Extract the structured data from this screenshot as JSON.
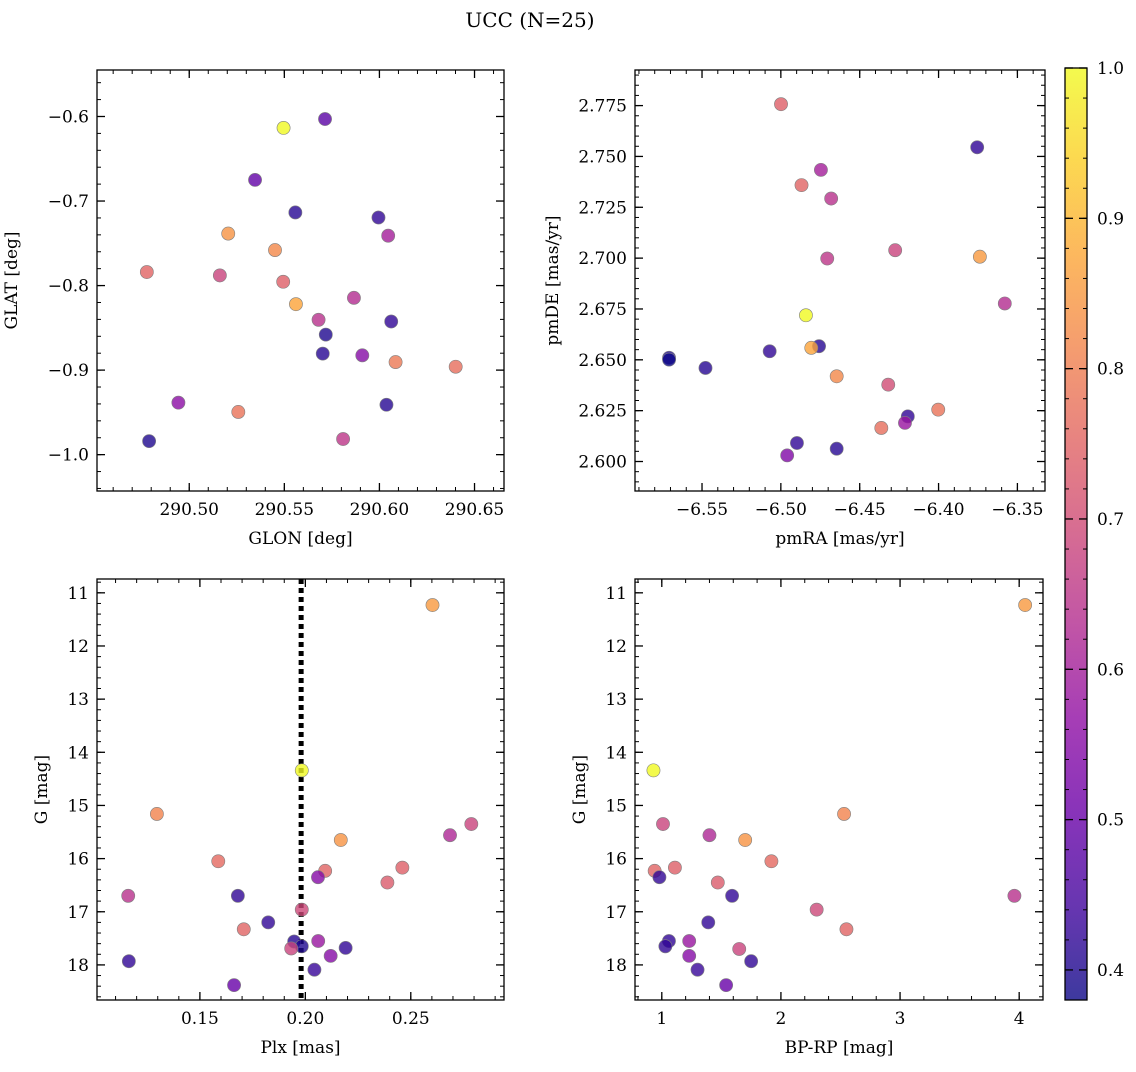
{
  "figure": {
    "title": "UCC (N=25)"
  },
  "colorbar": {
    "min": 0.38,
    "max": 1.0,
    "ticks": [
      0.4,
      0.5,
      0.6,
      0.7,
      0.8,
      0.9,
      1.0
    ],
    "tick_labels": [
      "0.4",
      "0.5",
      "0.6",
      "0.7",
      "0.8",
      "0.9",
      "1.0"
    ],
    "colormap": "plasma",
    "colormap_stops": [
      "#0d0887",
      "#41049d",
      "#6a00a8",
      "#8f0da4",
      "#b12a90",
      "#cc4778",
      "#e16462",
      "#f2844b",
      "#fca636",
      "#fcce25",
      "#f0f921"
    ],
    "marker_alpha": 0.8,
    "marker_edge_color": "#808080"
  },
  "chart_data": [
    {
      "type": "scatter",
      "name": "glon-glat",
      "xlabel": "GLON [deg]",
      "ylabel": "GLAT [deg]",
      "xlim": [
        290.4515,
        290.6655
      ],
      "ylim": [
        -1.043,
        -0.545
      ],
      "y_inverted": false,
      "xticks": [
        290.5,
        290.55,
        290.6,
        290.65
      ],
      "xtick_labels": [
        "290.50",
        "290.55",
        "290.60",
        "290.65"
      ],
      "yticks": [
        -1.0,
        -0.9,
        -0.8,
        -0.7,
        -0.6
      ],
      "ytick_labels": [
        "−1.0",
        "−0.9",
        "−0.8",
        "−0.7",
        "−0.6"
      ],
      "x_minor_step": 0.01,
      "y_minor_step": 0.02,
      "points": [
        {
          "x": 290.5496,
          "y": -0.6135,
          "c": 1.0
        },
        {
          "x": 290.5714,
          "y": -0.603,
          "c": 0.48
        },
        {
          "x": 290.5346,
          "y": -0.675,
          "c": 0.49
        },
        {
          "x": 290.5558,
          "y": -0.7135,
          "c": 0.41
        },
        {
          "x": 290.5995,
          "y": -0.7195,
          "c": 0.42
        },
        {
          "x": 290.5205,
          "y": -0.7385,
          "c": 0.84
        },
        {
          "x": 290.6046,
          "y": -0.741,
          "c": 0.6
        },
        {
          "x": 290.5451,
          "y": -0.758,
          "c": 0.82
        },
        {
          "x": 290.4777,
          "y": -0.784,
          "c": 0.75
        },
        {
          "x": 290.5161,
          "y": -0.788,
          "c": 0.68
        },
        {
          "x": 290.5494,
          "y": -0.7955,
          "c": 0.74
        },
        {
          "x": 290.5561,
          "y": -0.822,
          "c": 0.87
        },
        {
          "x": 290.5866,
          "y": -0.8145,
          "c": 0.63
        },
        {
          "x": 290.568,
          "y": -0.8405,
          "c": 0.64
        },
        {
          "x": 290.6062,
          "y": -0.8425,
          "c": 0.42
        },
        {
          "x": 290.5718,
          "y": -0.858,
          "c": 0.4
        },
        {
          "x": 290.5702,
          "y": -0.8805,
          "c": 0.41
        },
        {
          "x": 290.591,
          "y": -0.8825,
          "c": 0.55
        },
        {
          "x": 290.6085,
          "y": -0.8905,
          "c": 0.79
        },
        {
          "x": 290.6401,
          "y": -0.896,
          "c": 0.77
        },
        {
          "x": 290.4943,
          "y": -0.9385,
          "c": 0.56
        },
        {
          "x": 290.6037,
          "y": -0.941,
          "c": 0.41
        },
        {
          "x": 290.5258,
          "y": -0.9495,
          "c": 0.78
        },
        {
          "x": 290.4789,
          "y": -0.984,
          "c": 0.4
        },
        {
          "x": 290.5809,
          "y": -0.9815,
          "c": 0.65
        }
      ]
    },
    {
      "type": "scatter",
      "name": "pmra-pmde",
      "xlabel": "pmRA [mas/yr]",
      "ylabel": "pmDE [mas/yr]",
      "xlim": [
        -6.5925,
        -6.3325
      ],
      "ylim": [
        2.5855,
        2.7925
      ],
      "y_inverted": false,
      "xticks": [
        -6.55,
        -6.5,
        -6.45,
        -6.4,
        -6.35
      ],
      "xtick_labels": [
        "−6.55",
        "−6.50",
        "−6.45",
        "−6.40",
        "−6.35"
      ],
      "yticks": [
        2.6,
        2.625,
        2.65,
        2.675,
        2.7,
        2.725,
        2.75,
        2.775
      ],
      "ytick_labels": [
        "2.600",
        "2.625",
        "2.650",
        "2.675",
        "2.700",
        "2.725",
        "2.750",
        "2.775"
      ],
      "x_minor_step": 0.01,
      "y_minor_step": 0.005,
      "points": [
        {
          "x": -6.4999,
          "y": 2.7757,
          "c": 0.74
        },
        {
          "x": -6.3755,
          "y": 2.7545,
          "c": 0.42
        },
        {
          "x": -6.4746,
          "y": 2.7434,
          "c": 0.6
        },
        {
          "x": -6.4869,
          "y": 2.7359,
          "c": 0.75
        },
        {
          "x": -6.4681,
          "y": 2.7293,
          "c": 0.64
        },
        {
          "x": -6.4275,
          "y": 2.7039,
          "c": 0.68
        },
        {
          "x": -6.4706,
          "y": 2.6998,
          "c": 0.65
        },
        {
          "x": -6.3738,
          "y": 2.7007,
          "c": 0.85
        },
        {
          "x": -6.358,
          "y": 2.6777,
          "c": 0.63
        },
        {
          "x": -6.4841,
          "y": 2.6719,
          "c": 1.0
        },
        {
          "x": -6.4758,
          "y": 2.6567,
          "c": 0.41
        },
        {
          "x": -6.4807,
          "y": 2.6559,
          "c": 0.87
        },
        {
          "x": -6.5709,
          "y": 2.651,
          "c": 0.4
        },
        {
          "x": -6.5709,
          "y": 2.6501,
          "c": 0.38
        },
        {
          "x": -6.5071,
          "y": 2.6542,
          "c": 0.42
        },
        {
          "x": -6.5478,
          "y": 2.646,
          "c": 0.41
        },
        {
          "x": -6.4646,
          "y": 2.6419,
          "c": 0.82
        },
        {
          "x": -6.4319,
          "y": 2.6378,
          "c": 0.7
        },
        {
          "x": -6.4002,
          "y": 2.6255,
          "c": 0.78
        },
        {
          "x": -6.4195,
          "y": 2.6222,
          "c": 0.42
        },
        {
          "x": -6.4363,
          "y": 2.6165,
          "c": 0.77
        },
        {
          "x": -6.4213,
          "y": 2.619,
          "c": 0.58
        },
        {
          "x": -6.4898,
          "y": 2.6091,
          "c": 0.42
        },
        {
          "x": -6.4646,
          "y": 2.6063,
          "c": 0.41
        },
        {
          "x": -6.496,
          "y": 2.603,
          "c": 0.54
        }
      ]
    },
    {
      "type": "scatter",
      "name": "plx-g",
      "xlabel": "Plx [mas]",
      "ylabel": "G [mag]",
      "xlim": [
        0.1012,
        0.2942
      ],
      "ylim": [
        10.74,
        18.66
      ],
      "y_inverted": true,
      "vline": {
        "x": 0.198,
        "style": "dotted",
        "color": "#000000"
      },
      "xticks": [
        0.15,
        0.2,
        0.25
      ],
      "xtick_labels": [
        "0.15",
        "0.20",
        "0.25"
      ],
      "yticks": [
        11,
        12,
        13,
        14,
        15,
        16,
        17,
        18
      ],
      "ytick_labels": [
        "11",
        "12",
        "13",
        "14",
        "15",
        "16",
        "17",
        "18"
      ],
      "x_minor_step": 0.01,
      "y_minor_step": 0.2,
      "points": [
        {
          "x": 0.2603,
          "y": 11.23,
          "c": 0.85
        },
        {
          "x": 0.1983,
          "y": 14.34,
          "c": 1.0
        },
        {
          "x": 0.1296,
          "y": 15.16,
          "c": 0.81
        },
        {
          "x": 0.2787,
          "y": 15.35,
          "c": 0.68
        },
        {
          "x": 0.2686,
          "y": 15.56,
          "c": 0.62
        },
        {
          "x": 0.2168,
          "y": 15.65,
          "c": 0.84
        },
        {
          "x": 0.1587,
          "y": 16.05,
          "c": 0.76
        },
        {
          "x": 0.246,
          "y": 16.17,
          "c": 0.74
        },
        {
          "x": 0.2094,
          "y": 16.23,
          "c": 0.75
        },
        {
          "x": 0.206,
          "y": 16.35,
          "c": 0.55
        },
        {
          "x": 0.2389,
          "y": 16.45,
          "c": 0.73
        },
        {
          "x": 0.116,
          "y": 16.7,
          "c": 0.64
        },
        {
          "x": 0.168,
          "y": 16.7,
          "c": 0.42
        },
        {
          "x": 0.1983,
          "y": 16.96,
          "c": 0.69
        },
        {
          "x": 0.1824,
          "y": 17.2,
          "c": 0.42
        },
        {
          "x": 0.1708,
          "y": 17.33,
          "c": 0.75
        },
        {
          "x": 0.2061,
          "y": 17.55,
          "c": 0.58
        },
        {
          "x": 0.1947,
          "y": 17.56,
          "c": 0.41
        },
        {
          "x": 0.1983,
          "y": 17.65,
          "c": 0.4
        },
        {
          "x": 0.2191,
          "y": 17.68,
          "c": 0.42
        },
        {
          "x": 0.1933,
          "y": 17.69,
          "c": 0.68
        },
        {
          "x": 0.212,
          "y": 17.83,
          "c": 0.55
        },
        {
          "x": 0.1163,
          "y": 17.93,
          "c": 0.42
        },
        {
          "x": 0.2043,
          "y": 18.09,
          "c": 0.43
        },
        {
          "x": 0.1662,
          "y": 18.38,
          "c": 0.5
        }
      ]
    },
    {
      "type": "scatter",
      "name": "bprp-g",
      "xlabel": "BP-RP [mag]",
      "ylabel": "G [mag]",
      "xlim": [
        0.775,
        4.2
      ],
      "ylim": [
        10.74,
        18.66
      ],
      "y_inverted": true,
      "xticks": [
        1,
        2,
        3,
        4
      ],
      "xtick_labels": [
        "1",
        "2",
        "3",
        "4"
      ],
      "yticks": [
        11,
        12,
        13,
        14,
        15,
        16,
        17,
        18
      ],
      "ytick_labels": [
        "11",
        "12",
        "13",
        "14",
        "15",
        "16",
        "17",
        "18"
      ],
      "x_minor_step": 0.2,
      "y_minor_step": 0.2,
      "points": [
        {
          "x": 4.05,
          "y": 11.23,
          "c": 0.85
        },
        {
          "x": 0.93,
          "y": 14.34,
          "c": 1.0
        },
        {
          "x": 2.53,
          "y": 15.16,
          "c": 0.81
        },
        {
          "x": 1.01,
          "y": 15.35,
          "c": 0.68
        },
        {
          "x": 1.4,
          "y": 15.56,
          "c": 0.62
        },
        {
          "x": 1.7,
          "y": 15.65,
          "c": 0.84
        },
        {
          "x": 1.92,
          "y": 16.05,
          "c": 0.76
        },
        {
          "x": 1.11,
          "y": 16.17,
          "c": 0.74
        },
        {
          "x": 0.94,
          "y": 16.23,
          "c": 0.75
        },
        {
          "x": 0.98,
          "y": 16.35,
          "c": 0.42
        },
        {
          "x": 1.47,
          "y": 16.45,
          "c": 0.73
        },
        {
          "x": 1.59,
          "y": 16.7,
          "c": 0.42
        },
        {
          "x": 3.96,
          "y": 16.7,
          "c": 0.64
        },
        {
          "x": 2.3,
          "y": 16.96,
          "c": 0.69
        },
        {
          "x": 1.39,
          "y": 17.2,
          "c": 0.42
        },
        {
          "x": 2.55,
          "y": 17.33,
          "c": 0.75
        },
        {
          "x": 1.06,
          "y": 17.55,
          "c": 0.42
        },
        {
          "x": 1.23,
          "y": 17.55,
          "c": 0.58
        },
        {
          "x": 1.03,
          "y": 17.65,
          "c": 0.42
        },
        {
          "x": 1.65,
          "y": 17.7,
          "c": 0.68
        },
        {
          "x": 1.23,
          "y": 17.83,
          "c": 0.55
        },
        {
          "x": 1.75,
          "y": 17.93,
          "c": 0.42
        },
        {
          "x": 1.3,
          "y": 18.09,
          "c": 0.43
        },
        {
          "x": 1.54,
          "y": 18.38,
          "c": 0.5
        }
      ]
    }
  ]
}
